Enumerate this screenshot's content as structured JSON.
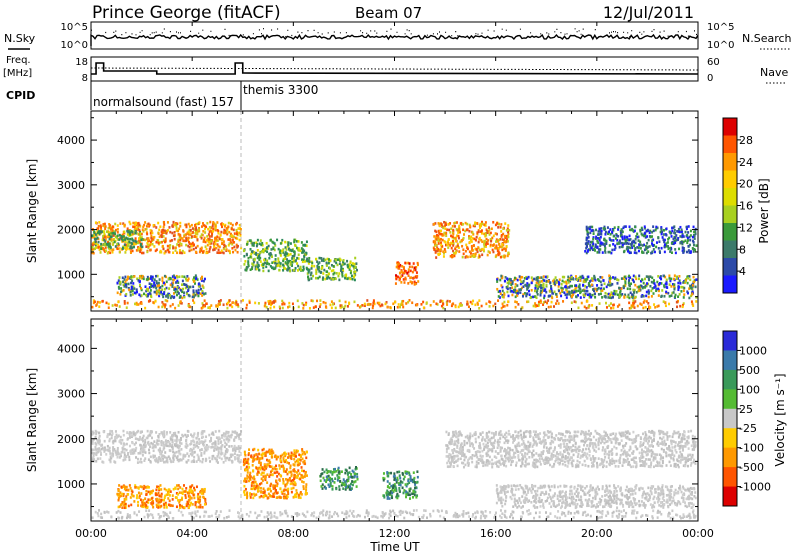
{
  "header": {
    "station": "Prince George (fitACF)",
    "beam": "Beam 07",
    "date": "12/Jul/2011"
  },
  "top_panels": {
    "nsky_label": "N.Sky",
    "nsearch_label": "N.Search",
    "noise_ticks_left": [
      "10^5",
      "10^0"
    ],
    "noise_ticks_right": [
      "10^5",
      "10^0"
    ],
    "freq_label": "Freq.",
    "freq_unit": "[MHz]",
    "freq_ticks": [
      "18",
      "8"
    ],
    "nave_label": "Nave",
    "nave_ticks": [
      "60",
      "0"
    ],
    "cpid_label": "CPID",
    "cpid_segments": [
      {
        "label": "normalsound (fast) 157",
        "start_hour": 0,
        "end_hour": 6
      },
      {
        "label": "themis 3300",
        "start_hour": 6,
        "end_hour": 24
      }
    ]
  },
  "x_axis": {
    "label": "Time UT",
    "ticks": [
      "00:00",
      "04:00",
      "08:00",
      "12:00",
      "16:00",
      "20:00",
      "00:00"
    ],
    "tick_hours": [
      0,
      4,
      8,
      12,
      16,
      20,
      24
    ]
  },
  "chart_data": [
    {
      "type": "heatmap",
      "title": "",
      "xlabel": "",
      "ylabel": "Slant Range [km]",
      "xlim": [
        0,
        24
      ],
      "ylim": [
        180,
        4650
      ],
      "yticks": [
        1000,
        2000,
        3000,
        4000
      ],
      "colorbar": {
        "label": "Power [dB]",
        "tick_labels": [
          "28",
          "24",
          "20",
          "16",
          "12",
          "8",
          "4"
        ],
        "colors": [
          "#dd0000",
          "#ff5500",
          "#ff9900",
          "#ffcc00",
          "#dddd00",
          "#a8d020",
          "#3a9a3a",
          "#3c7a6a",
          "#2c4aa8",
          "#1a1aff"
        ]
      },
      "regions": [
        {
          "t0": 0.0,
          "t1": 5.9,
          "r0": 1500,
          "r1": 2200,
          "color": "orange"
        },
        {
          "t0": 0.0,
          "t1": 2.0,
          "r0": 1600,
          "r1": 2000,
          "color": "green"
        },
        {
          "t0": 1.0,
          "t1": 4.5,
          "r0": 500,
          "r1": 1000,
          "color": "mixed"
        },
        {
          "t0": 6.0,
          "t1": 8.5,
          "r0": 1100,
          "r1": 1800,
          "color": "green"
        },
        {
          "t0": 8.5,
          "t1": 10.5,
          "r0": 900,
          "r1": 1400,
          "color": "green"
        },
        {
          "t0": 12.0,
          "t1": 12.9,
          "r0": 800,
          "r1": 1300,
          "color": "red"
        },
        {
          "t0": 13.5,
          "t1": 16.5,
          "r0": 1400,
          "r1": 2200,
          "color": "orange"
        },
        {
          "t0": 16.0,
          "t1": 23.9,
          "r0": 500,
          "r1": 1000,
          "color": "mixed"
        },
        {
          "t0": 19.5,
          "t1": 23.9,
          "r0": 1500,
          "r1": 2100,
          "color": "blue"
        }
      ]
    },
    {
      "type": "heatmap",
      "title": "",
      "xlabel": "Time UT",
      "ylabel": "Slant Range [km]",
      "xlim": [
        0,
        24
      ],
      "ylim": [
        180,
        4650
      ],
      "yticks": [
        1000,
        2000,
        3000,
        4000
      ],
      "colorbar": {
        "label": "Velocity [m s⁻¹]",
        "tick_labels": [
          "1000",
          "500",
          "100",
          "25",
          "-25",
          "-100",
          "-500",
          "-1000"
        ],
        "colors": [
          "#2a2ad8",
          "#3a7aaa",
          "#3a9a5a",
          "#55bb33",
          "#c8c8c8",
          "#ffcc00",
          "#ff9900",
          "#ff5500",
          "#dd0000"
        ]
      },
      "regions": [
        {
          "t0": 0.0,
          "t1": 5.9,
          "r0": 1500,
          "r1": 2200,
          "color": "gray"
        },
        {
          "t0": 1.0,
          "t1": 4.5,
          "r0": 500,
          "r1": 1000,
          "color": "orange"
        },
        {
          "t0": 6.0,
          "t1": 8.5,
          "r0": 700,
          "r1": 1800,
          "color": "orange"
        },
        {
          "t0": 9.0,
          "t1": 10.5,
          "r0": 900,
          "r1": 1400,
          "color": "green"
        },
        {
          "t0": 11.5,
          "t1": 12.9,
          "r0": 700,
          "r1": 1300,
          "color": "green"
        },
        {
          "t0": 14.0,
          "t1": 23.9,
          "r0": 1400,
          "r1": 2200,
          "color": "gray"
        },
        {
          "t0": 16.0,
          "t1": 23.9,
          "r0": 500,
          "r1": 1000,
          "color": "gray"
        }
      ]
    }
  ]
}
